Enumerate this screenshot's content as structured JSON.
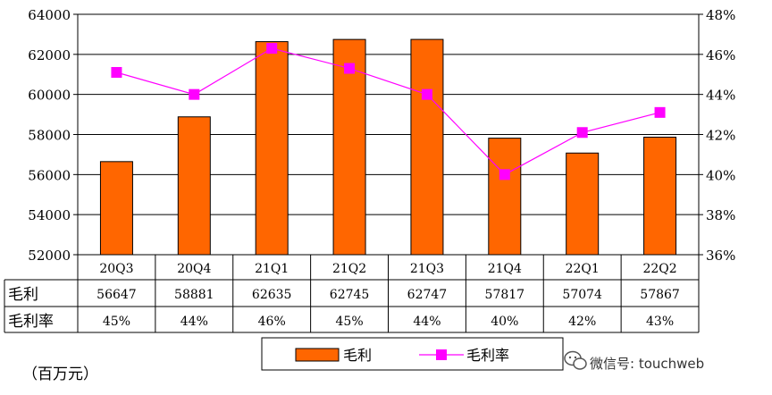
{
  "chart_data": {
    "type": "bar",
    "categories": [
      "20Q3",
      "20Q4",
      "21Q1",
      "21Q2",
      "21Q3",
      "21Q4",
      "22Q1",
      "22Q2"
    ],
    "series": [
      {
        "name": "毛利",
        "kind": "bar",
        "axis": "left",
        "color": "#ff6600",
        "values": [
          56647,
          58881,
          62635,
          62745,
          62747,
          57817,
          57074,
          57867
        ],
        "labels": [
          "56647",
          "58881",
          "62635",
          "62745",
          "62747",
          "57817",
          "57074",
          "57867"
        ]
      },
      {
        "name": "毛利率",
        "kind": "line",
        "axis": "right",
        "color": "#ff00ff",
        "values": [
          45.1,
          44.0,
          46.3,
          45.3,
          44.0,
          40.0,
          42.1,
          43.1
        ],
        "labels": [
          "45%",
          "44%",
          "46%",
          "45%",
          "44%",
          "40%",
          "42%",
          "43%"
        ]
      }
    ],
    "y_left": {
      "ylim": [
        52000,
        64000
      ],
      "ticks": [
        "52000",
        "54000",
        "56000",
        "58000",
        "60000",
        "62000",
        "64000"
      ]
    },
    "y_right": {
      "ylim": [
        36,
        48
      ],
      "ticks": [
        "36%",
        "38%",
        "40%",
        "42%",
        "44%",
        "46%",
        "48%"
      ]
    },
    "grid": true,
    "legend_position": "bottom",
    "unit_note": "（百万元）"
  },
  "watermark": {
    "text": "微信号: touchweb",
    "icon": "wechat-icon"
  }
}
